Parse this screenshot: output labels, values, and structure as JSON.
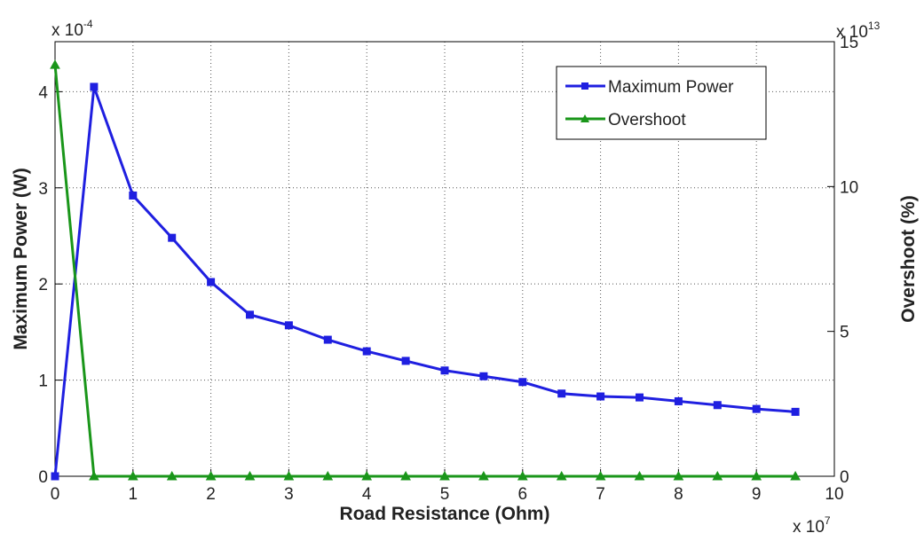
{
  "chart_data": {
    "type": "line",
    "xlabel": "Road Resistance (Ohm)",
    "ylabel": "Maximum Power (W)",
    "y2label": "Overshoot (%)",
    "x_multiplier": {
      "base": "x 10",
      "exp": "7"
    },
    "y_multiplier": {
      "base": "x 10",
      "exp": "-4"
    },
    "y2_multiplier": {
      "base": "x 10",
      "exp": "13"
    },
    "x": [
      0,
      0.5,
      1,
      1.5,
      2,
      2.5,
      3,
      3.5,
      4,
      4.5,
      5,
      5.5,
      6,
      6.5,
      7,
      7.5,
      8,
      8.5,
      9,
      9.5
    ],
    "series": [
      {
        "name": "Maximum Power",
        "color": "#1f1fe0",
        "marker": "square",
        "values": [
          0,
          4.05,
          2.92,
          2.48,
          2.02,
          1.68,
          1.57,
          1.42,
          1.3,
          1.2,
          1.1,
          1.04,
          0.98,
          0.86,
          0.83,
          0.82,
          0.78,
          0.74,
          0.7,
          0.67
        ]
      },
      {
        "name": "Overshoot",
        "color": "#1a961a",
        "marker": "triangle",
        "axis": "y2",
        "values": [
          14.2,
          0,
          0,
          0,
          0,
          0,
          0,
          0,
          0,
          0,
          0,
          0,
          0,
          0,
          0,
          0,
          0,
          0,
          0,
          0
        ]
      }
    ],
    "xlim": [
      0,
      10
    ],
    "xticks": [
      0,
      1,
      2,
      3,
      4,
      5,
      6,
      7,
      8,
      9,
      10
    ],
    "ylim": [
      0,
      4.52
    ],
    "yticks": [
      0,
      1,
      2,
      3,
      4
    ],
    "y2lim": [
      0,
      15
    ],
    "y2ticks": [
      0,
      5,
      10,
      15
    ],
    "grid": true,
    "legend": "top-right"
  }
}
